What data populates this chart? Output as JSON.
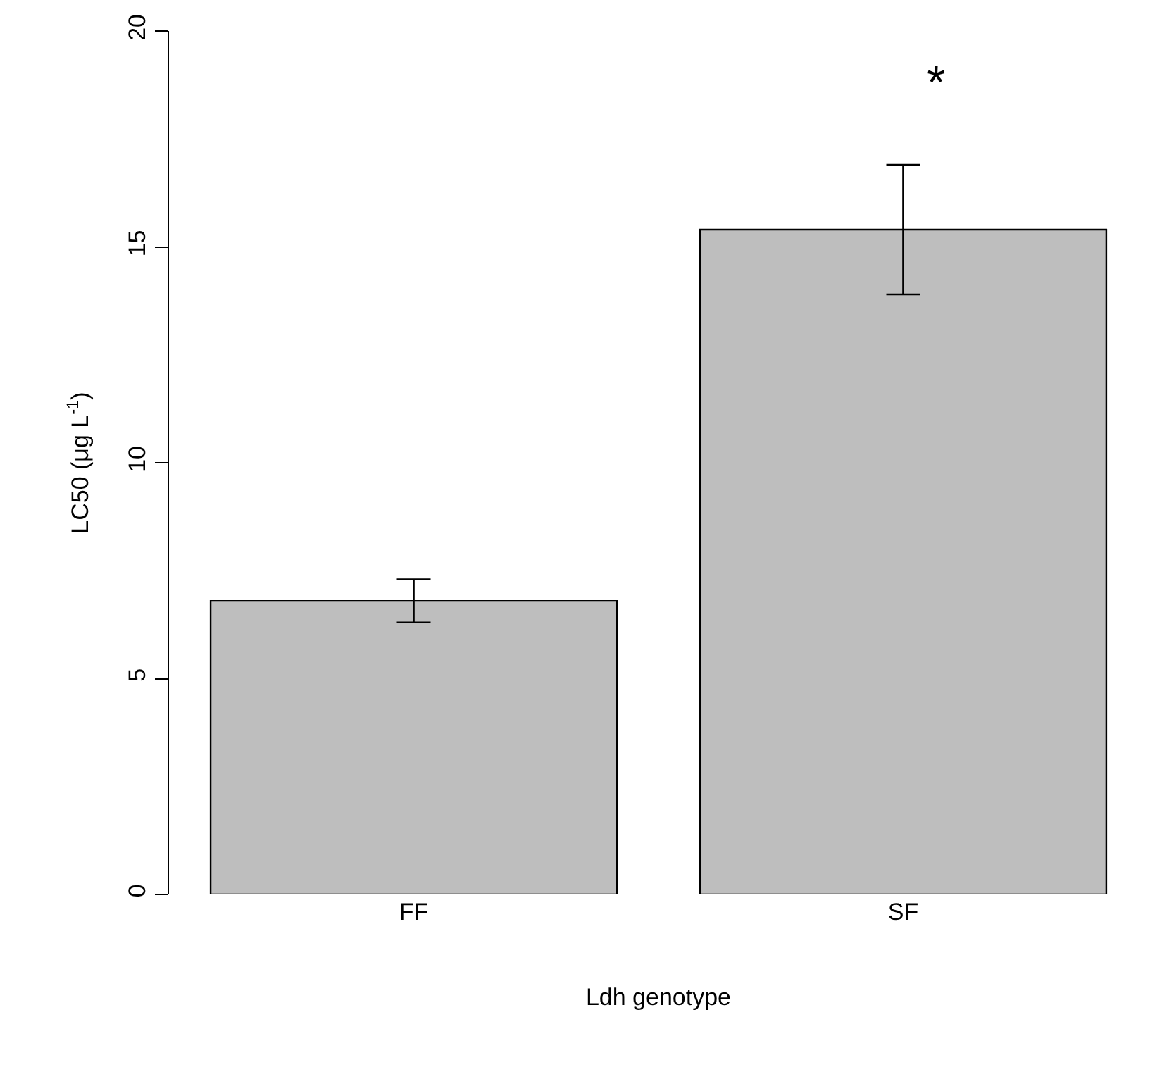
{
  "chart_data": {
    "type": "bar",
    "xlabel": "Ldh genotype",
    "ylabel": "LC50 (μg L$^{-1}$)",
    "categories": [
      "FF",
      "SF"
    ],
    "values": [
      6.8,
      15.4
    ],
    "errors": [
      0.5,
      1.5
    ],
    "color": "#bebebe",
    "ylim": [
      0,
      20
    ],
    "yticks": [
      0,
      5,
      10,
      15,
      20
    ],
    "grid": false,
    "annotations": [
      "*"
    ]
  }
}
